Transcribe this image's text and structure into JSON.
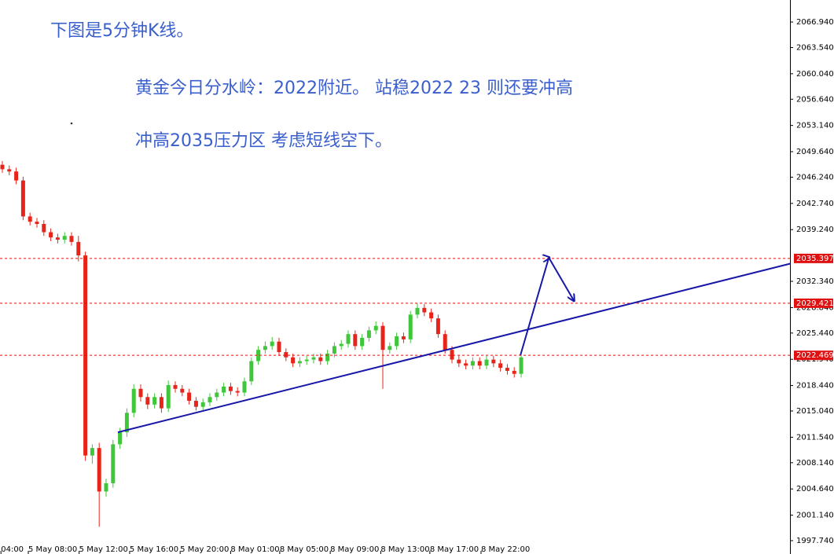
{
  "chart_data": {
    "type": "candlestick",
    "annotations": [
      "下图是5分钟K线。",
      "黄金今日分水岭：2022附近。 站稳2022 23 则还要冲高",
      "冲高2035压力区 考虑短线空下。"
    ],
    "up_color": "#3fc63a",
    "down_color": "#e8241a",
    "open": [
      2047.9,
      2047.3,
      2047.0,
      2045.8,
      2041.0,
      2040.3,
      2040.0,
      2038.9,
      2038.2,
      2037.9,
      2038.4,
      2037.6,
      2035.8,
      2009.1,
      2010.1,
      2004.3,
      2005.4,
      2010.6,
      2012.2,
      2014.8,
      2018.0,
      2016.9,
      2015.9,
      2016.9,
      2015.4,
      2018.5,
      2018.0,
      2017.5,
      2016.4,
      2015.6,
      2016.2,
      2016.9,
      2017.5,
      2018.3,
      2017.7,
      2017.5,
      2019.0,
      2021.7,
      2023.2,
      2023.7,
      2024.3,
      2022.9,
      2022.2,
      2021.4,
      2021.7,
      2021.9,
      2022.2,
      2021.7,
      2022.7,
      2023.7,
      2024.0,
      2025.3,
      2023.7,
      2024.8,
      2025.8,
      2026.4,
      2023.2,
      2023.7,
      2025.0,
      2024.6,
      2027.9,
      2028.8,
      2028.2,
      2027.4,
      2025.3,
      2023.2,
      2021.9,
      2021.4,
      2021.1,
      2021.7,
      2021.1,
      2021.9,
      2021.4,
      2020.8,
      2020.4,
      2020.0
    ],
    "high": [
      2048.4,
      2047.8,
      2047.5,
      2046.3,
      2041.5,
      2040.8,
      2040.5,
      2039.4,
      2038.7,
      2038.9,
      2038.9,
      2038.4,
      2036.3,
      2010.6,
      2010.8,
      2006.0,
      2011.2,
      2012.8,
      2015.4,
      2018.6,
      2018.6,
      2017.4,
      2017.4,
      2017.4,
      2019.1,
      2019.0,
      2018.5,
      2018.0,
      2016.9,
      2016.7,
      2017.4,
      2018.0,
      2018.8,
      2018.8,
      2018.2,
      2019.5,
      2022.2,
      2023.7,
      2024.3,
      2024.9,
      2024.8,
      2023.4,
      2022.7,
      2022.2,
      2022.4,
      2022.7,
      2022.7,
      2023.2,
      2024.2,
      2024.5,
      2025.8,
      2025.8,
      2025.3,
      2026.3,
      2027.0,
      2026.9,
      2024.2,
      2025.5,
      2025.5,
      2028.4,
      2029.4,
      2029.3,
      2028.7,
      2027.9,
      2025.8,
      2023.7,
      2022.4,
      2021.9,
      2022.2,
      2022.2,
      2022.4,
      2022.4,
      2021.9,
      2021.3,
      2020.9,
      2022.7
    ],
    "low": [
      2046.8,
      2046.5,
      2045.3,
      2040.5,
      2039.8,
      2039.5,
      2038.4,
      2037.7,
      2037.4,
      2037.4,
      2037.1,
      2035.0,
      2008.4,
      2008.0,
      1999.6,
      2003.6,
      2004.8,
      2010.0,
      2011.6,
      2014.2,
      2016.3,
      2015.3,
      2015.4,
      2014.8,
      2014.9,
      2017.5,
      2017.0,
      2015.9,
      2015.1,
      2015.1,
      2015.7,
      2016.4,
      2017.0,
      2017.2,
      2017.0,
      2017.0,
      2018.5,
      2021.2,
      2022.7,
      2023.2,
      2022.4,
      2021.7,
      2020.9,
      2020.9,
      2021.2,
      2021.4,
      2021.2,
      2021.2,
      2022.2,
      2023.2,
      2023.5,
      2023.2,
      2023.2,
      2024.3,
      2025.3,
      2018.0,
      2022.7,
      2023.2,
      2024.1,
      2024.1,
      2027.4,
      2027.7,
      2026.9,
      2024.8,
      2022.7,
      2021.4,
      2020.9,
      2020.6,
      2020.6,
      2020.6,
      2020.6,
      2020.9,
      2020.3,
      2019.9,
      2019.5,
      2019.5
    ],
    "close": [
      2047.3,
      2047.0,
      2045.8,
      2041.0,
      2040.3,
      2040.0,
      2038.9,
      2038.2,
      2037.9,
      2038.4,
      2037.6,
      2035.8,
      2009.1,
      2010.1,
      2004.3,
      2005.4,
      2010.6,
      2012.2,
      2014.8,
      2018.0,
      2016.9,
      2015.9,
      2016.9,
      2015.4,
      2018.5,
      2018.0,
      2017.5,
      2016.4,
      2015.6,
      2016.2,
      2016.9,
      2017.5,
      2018.3,
      2017.7,
      2017.5,
      2019.0,
      2021.7,
      2023.2,
      2023.7,
      2024.3,
      2022.9,
      2022.2,
      2021.4,
      2021.7,
      2021.9,
      2022.2,
      2021.7,
      2022.7,
      2023.7,
      2024.0,
      2025.3,
      2023.7,
      2024.8,
      2025.8,
      2026.4,
      2023.2,
      2023.7,
      2025.0,
      2024.6,
      2027.9,
      2028.8,
      2028.2,
      2027.4,
      2025.3,
      2023.2,
      2021.9,
      2021.4,
      2021.1,
      2021.7,
      2021.1,
      2021.9,
      2021.4,
      2020.8,
      2020.4,
      2020.0,
      2022.2
    ],
    "xlim": [
      -0.34,
      113.86
    ],
    "ylim": [
      1995.96,
      2069.88
    ],
    "xticks": [
      {
        "value": -0.2,
        "label": "04:00"
      },
      {
        "value": 3.75,
        "label": "5 May 08:00"
      },
      {
        "value": 11.1,
        "label": "5 May 12:00"
      },
      {
        "value": 18.4,
        "label": "5 May 16:00"
      },
      {
        "value": 25.7,
        "label": "5 May 20:00"
      },
      {
        "value": 33.0,
        "label": "8 May 01:00"
      },
      {
        "value": 40.1,
        "label": "8 May 05:00"
      },
      {
        "value": 47.4,
        "label": "8 May 09:00"
      },
      {
        "value": 54.7,
        "label": "8 May 13:00"
      },
      {
        "value": 61.8,
        "label": "8 May 17:00"
      },
      {
        "value": 69.2,
        "label": "8 May 22:00"
      }
    ],
    "yticks": [
      {
        "value": 2066.94,
        "label": "2066.940"
      },
      {
        "value": 2063.54,
        "label": "2063.540"
      },
      {
        "value": 2060.04,
        "label": "2060.040"
      },
      {
        "value": 2056.64,
        "label": "2056.640"
      },
      {
        "value": 2053.14,
        "label": "2053.140"
      },
      {
        "value": 2049.64,
        "label": "2049.640"
      },
      {
        "value": 2046.24,
        "label": "2046.240"
      },
      {
        "value": 2042.74,
        "label": "2042.740"
      },
      {
        "value": 2039.24,
        "label": "2039.240"
      },
      {
        "value": 2032.34,
        "label": "2032.340"
      },
      {
        "value": 2028.84,
        "label": "2028.840"
      },
      {
        "value": 2025.44,
        "label": "2025.440"
      },
      {
        "value": 2021.94,
        "label": "2021.940"
      },
      {
        "value": 2018.44,
        "label": "2018.440"
      },
      {
        "value": 2015.04,
        "label": "2015.040"
      },
      {
        "value": 2011.54,
        "label": "2011.540"
      },
      {
        "value": 2008.14,
        "label": "2008.140"
      },
      {
        "value": 2004.64,
        "label": "2004.640"
      },
      {
        "value": 2001.14,
        "label": "2001.140"
      },
      {
        "value": 1997.74,
        "label": "1997.740"
      }
    ],
    "price_lines": [
      2035.397,
      2029.421,
      2022.469
    ],
    "price_line_color": "#e01010",
    "trendline": {
      "x": [
        16.7,
        113.9
      ],
      "y": [
        2012.2,
        2034.7
      ],
      "color": "#1818a8"
    },
    "arrow": {
      "x": [
        74.9,
        79.0,
        82.6
      ],
      "y": [
        2022.5,
        2035.5,
        2029.8
      ],
      "color": "#1818a8"
    }
  }
}
